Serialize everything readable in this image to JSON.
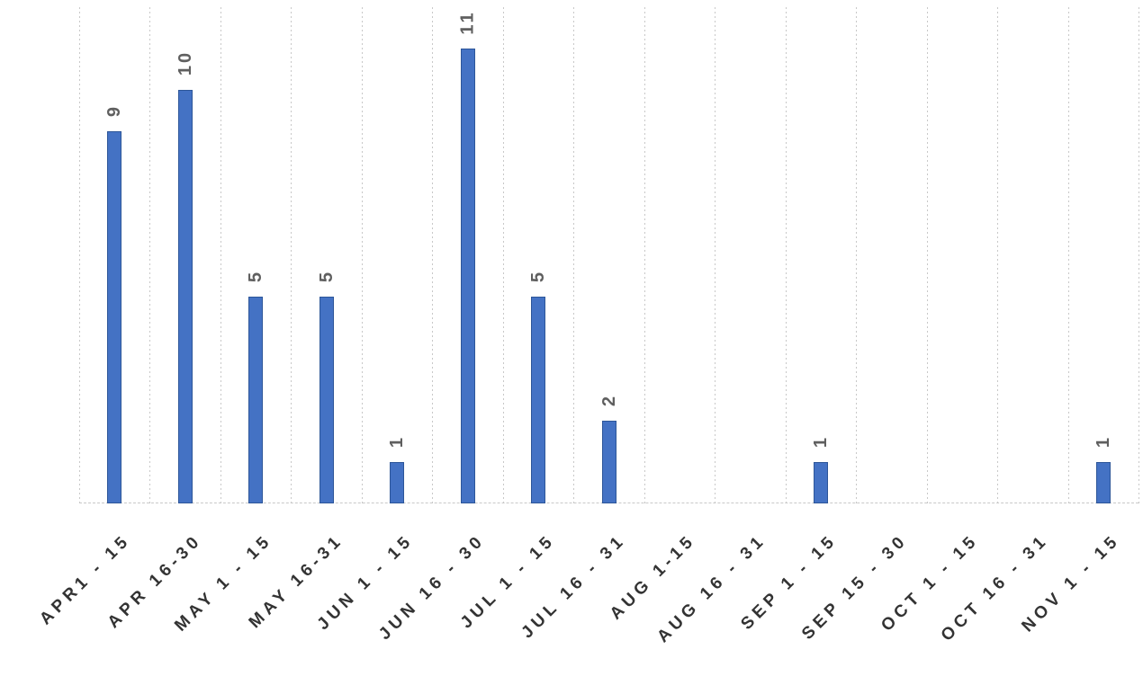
{
  "chart_data": {
    "type": "bar",
    "title": "",
    "xlabel": "",
    "ylabel": "",
    "categories": [
      "APR1 - 15",
      "APR 16-30",
      "MAY 1 - 15",
      "MAY 16-31",
      "JUN 1 - 15",
      "JUN 16 - 30",
      "JUL 1 - 15",
      "JUL 16 - 31",
      "AUG 1-15",
      "AUG 16 - 31",
      "SEP 1 - 15",
      "SEP 15 - 30",
      "OCT 1 - 15",
      "OCT 16 - 31",
      "NOV 1 - 15"
    ],
    "values": [
      9,
      10,
      5,
      5,
      1,
      11,
      5,
      2,
      0,
      0,
      1,
      0,
      0,
      0,
      1
    ],
    "ylim": [
      0,
      12
    ],
    "grid": "vertical-dashed",
    "legend": "none",
    "data_labels": "outside-end-rotated-90",
    "category_label_rotation_deg": -45,
    "colors": {
      "bar_fill": "#4472C4",
      "bar_border": "#2D5699",
      "gridline": "#C8C8C8",
      "data_label": "#5F5F5F",
      "axis_label": "#333333",
      "background": "#FFFFFF"
    }
  }
}
